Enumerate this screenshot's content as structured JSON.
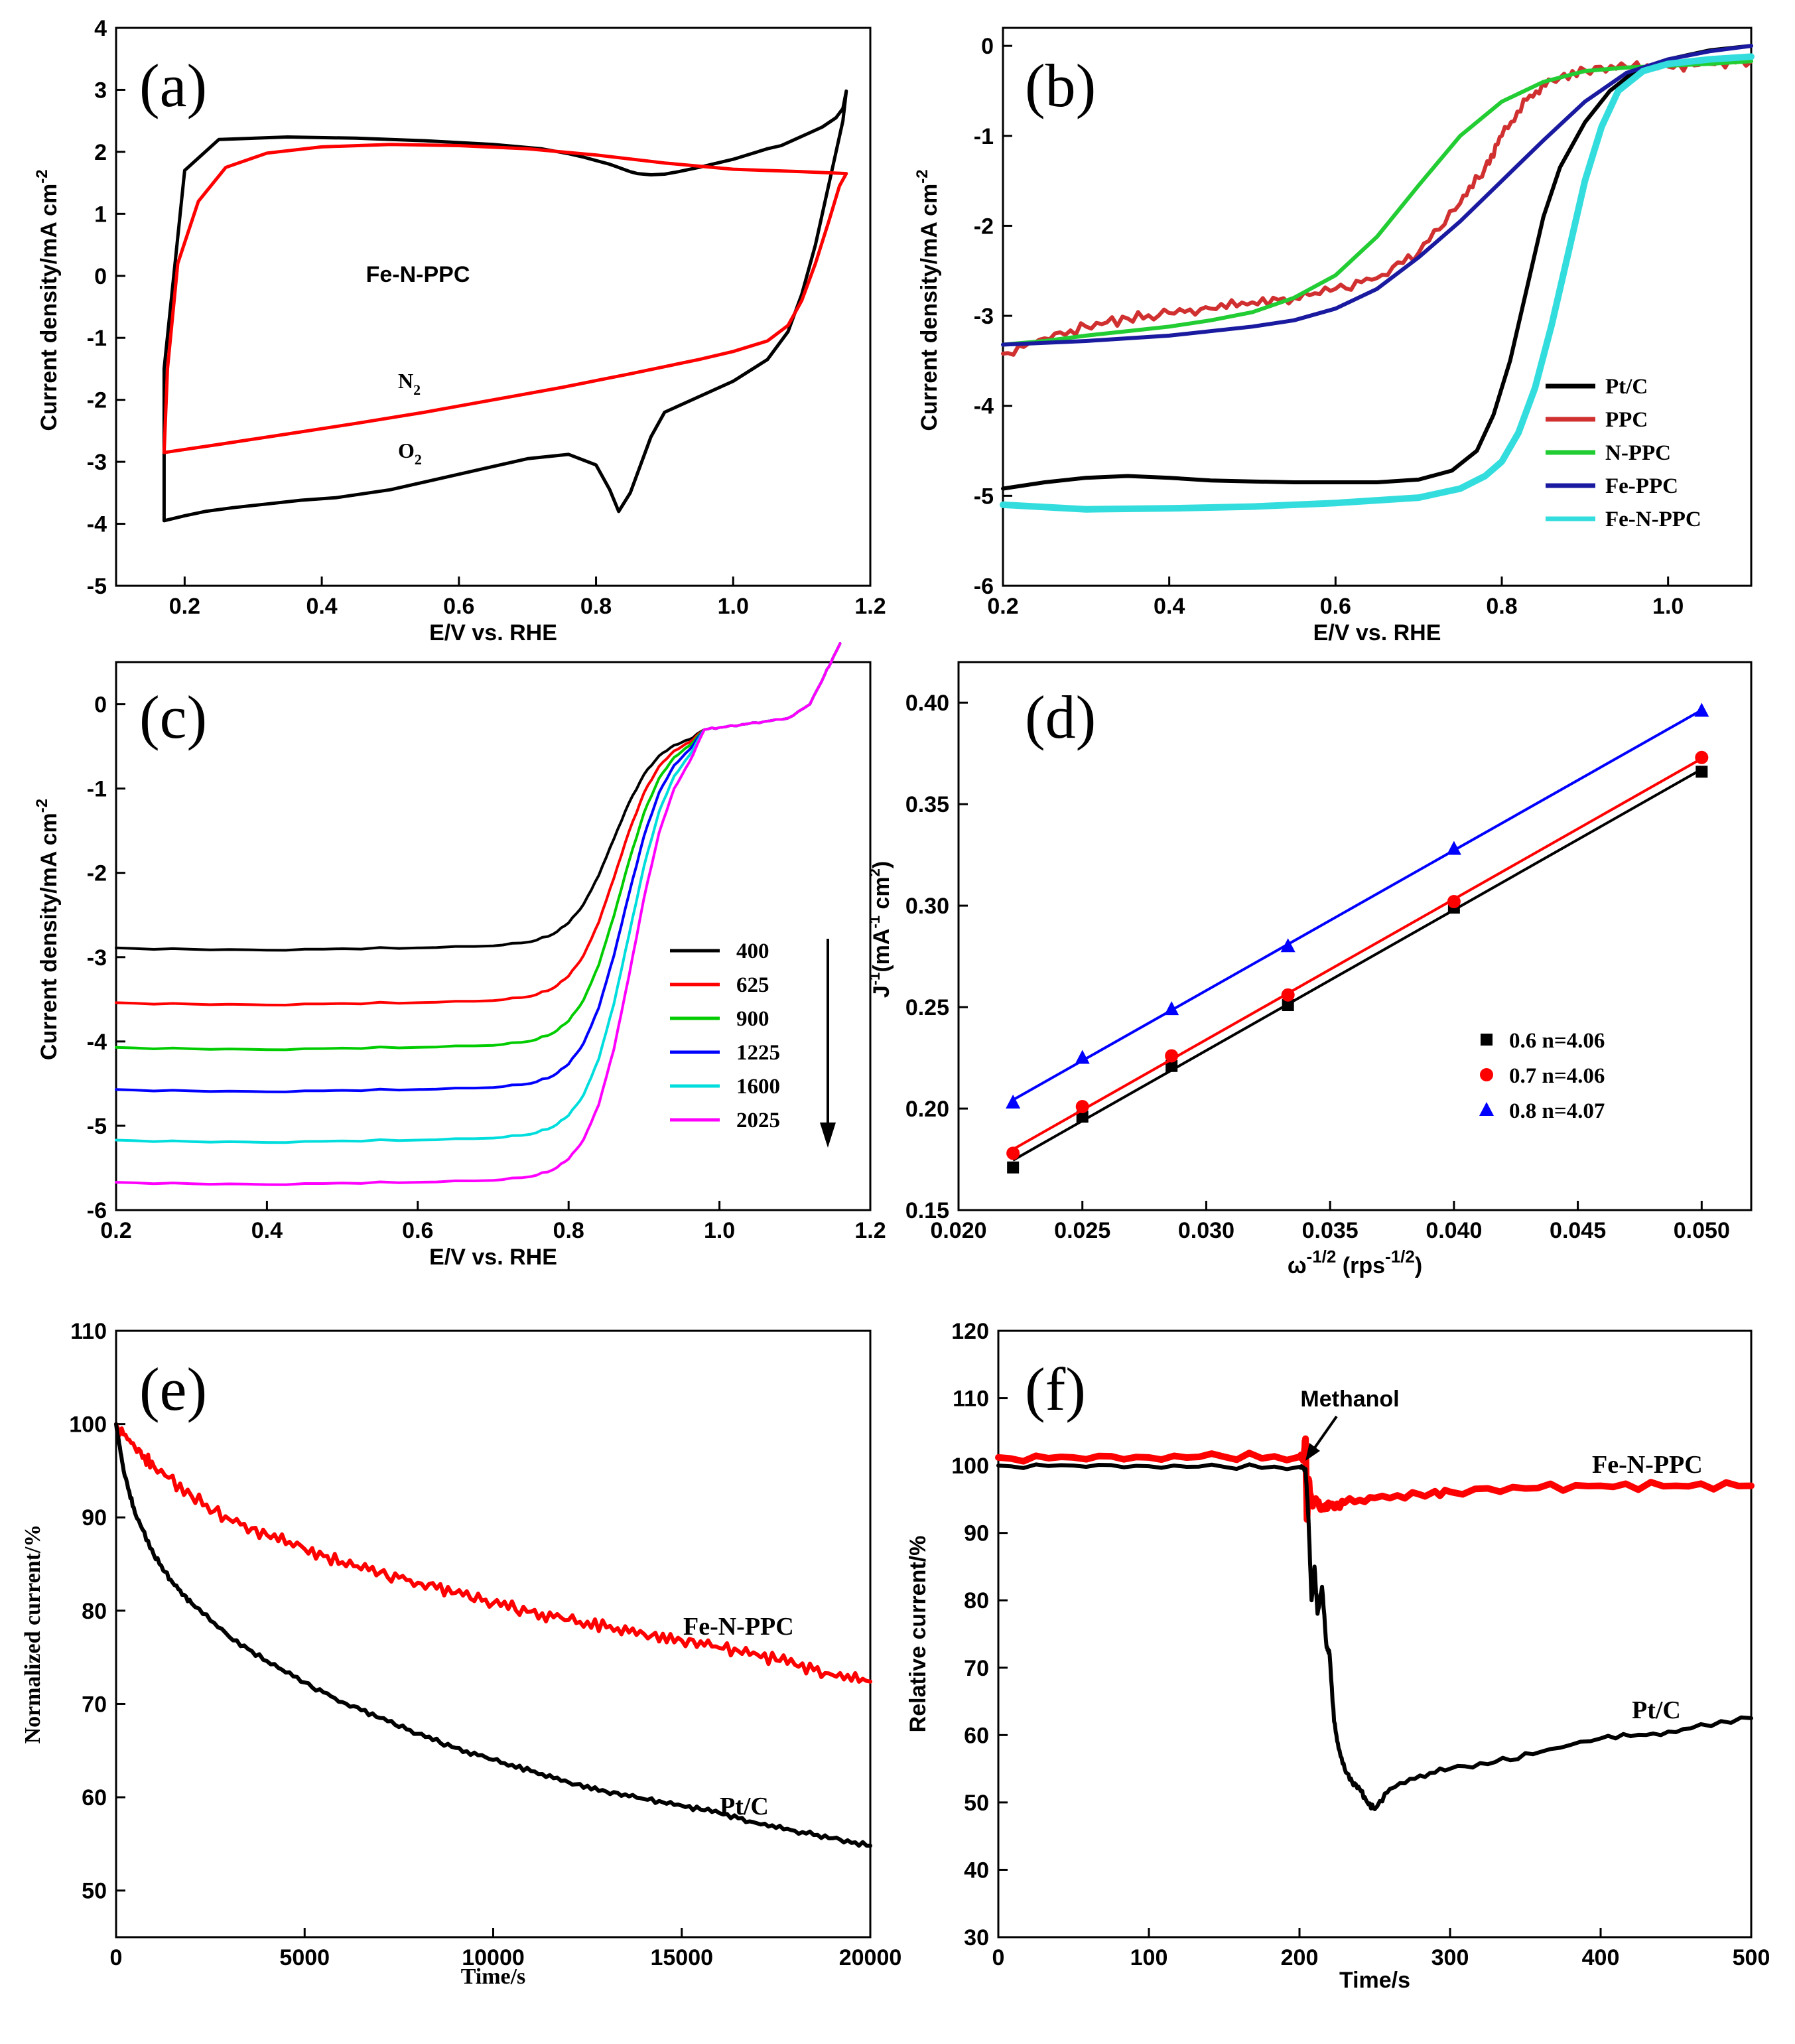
{
  "chart_data": [
    {
      "id": "a",
      "type": "line",
      "panel_label": "(a)",
      "xlabel": "E/V vs. RHE",
      "ylabel": "Current density/mA cm",
      "ylabel_sup": "-2",
      "xlim": [
        0.1,
        1.2
      ],
      "ylim": [
        -5,
        4
      ],
      "xticks": [
        "0.2",
        "0.4",
        "0.6",
        "0.8",
        "1.0",
        "1.2"
      ],
      "yticks": [
        "-5",
        "-4",
        "-3",
        "-2",
        "-1",
        "0",
        "1",
        "2",
        "3",
        "4"
      ],
      "annotations": [
        {
          "text": "Fe-N-PPC"
        },
        {
          "text": "N",
          "sub": "2"
        },
        {
          "text": "O",
          "sub": "2"
        }
      ],
      "series": [
        {
          "name": "O2",
          "color": "#000000",
          "x": [
            0.17,
            0.2,
            0.23,
            0.27,
            0.32,
            0.37,
            0.42,
            0.5,
            0.6,
            0.7,
            0.76,
            0.8,
            0.82,
            0.833,
            0.85,
            0.88,
            0.9,
            0.95,
            1.0,
            1.05,
            1.08,
            1.1,
            1.12,
            1.14,
            1.16,
            1.165,
            1.16,
            1.15,
            1.13,
            1.11,
            1.09,
            1.07,
            1.05,
            1.0,
            0.95,
            0.92,
            0.9,
            0.88,
            0.86,
            0.85,
            0.84,
            0.83,
            0.82,
            0.8,
            0.78,
            0.76,
            0.72,
            0.65,
            0.55,
            0.45,
            0.35,
            0.25,
            0.2,
            0.17,
            0.17
          ],
          "y": [
            -3.95,
            -3.87,
            -3.8,
            -3.74,
            -3.68,
            -3.62,
            -3.58,
            -3.45,
            -3.2,
            -2.95,
            -2.88,
            -3.05,
            -3.45,
            -3.8,
            -3.5,
            -2.6,
            -2.2,
            -1.95,
            -1.7,
            -1.35,
            -0.9,
            -0.3,
            0.5,
            1.5,
            2.5,
            2.98,
            2.7,
            2.55,
            2.4,
            2.3,
            2.2,
            2.1,
            2.05,
            1.88,
            1.75,
            1.68,
            1.64,
            1.63,
            1.65,
            1.68,
            1.72,
            1.76,
            1.8,
            1.86,
            1.92,
            1.97,
            2.05,
            2.12,
            2.18,
            2.22,
            2.24,
            2.2,
            1.7,
            -1.5,
            -3.95
          ]
        },
        {
          "name": "N2",
          "color": "#ff0000",
          "x": [
            0.17,
            0.25,
            0.35,
            0.45,
            0.55,
            0.65,
            0.75,
            0.85,
            0.95,
            1.0,
            1.05,
            1.08,
            1.1,
            1.12,
            1.14,
            1.155,
            1.165,
            1.165,
            1.1,
            1.0,
            0.9,
            0.8,
            0.7,
            0.6,
            0.5,
            0.4,
            0.32,
            0.26,
            0.22,
            0.19,
            0.175,
            0.17
          ],
          "y": [
            -2.85,
            -2.72,
            -2.55,
            -2.38,
            -2.2,
            -2.0,
            -1.8,
            -1.58,
            -1.35,
            -1.22,
            -1.05,
            -0.8,
            -0.4,
            0.2,
            0.9,
            1.45,
            1.65,
            1.65,
            1.68,
            1.72,
            1.82,
            1.95,
            2.05,
            2.1,
            2.12,
            2.08,
            1.98,
            1.75,
            1.2,
            0.2,
            -1.5,
            -2.85
          ]
        }
      ]
    },
    {
      "id": "b",
      "type": "line",
      "panel_label": "(b)",
      "xlabel": "E/V vs. RHE",
      "ylabel": "Current density/mA cm",
      "ylabel_sup": "-2",
      "xlim": [
        0.2,
        1.1
      ],
      "ylim": [
        -6,
        0.2
      ],
      "xticks": [
        "0.2",
        "0.4",
        "0.6",
        "0.8",
        "1.0"
      ],
      "yticks": [
        "-6",
        "-5",
        "-4",
        "-3",
        "-2",
        "-1",
        "0"
      ],
      "legend": "bottom-right",
      "series": [
        {
          "name": "Pt/C",
          "color": "#000000",
          "x": [
            0.2,
            0.25,
            0.3,
            0.35,
            0.4,
            0.45,
            0.5,
            0.55,
            0.6,
            0.65,
            0.7,
            0.74,
            0.77,
            0.79,
            0.81,
            0.83,
            0.85,
            0.87,
            0.9,
            0.93,
            0.96,
            1.0,
            1.05,
            1.1
          ],
          "y": [
            -4.92,
            -4.85,
            -4.8,
            -4.78,
            -4.8,
            -4.83,
            -4.84,
            -4.85,
            -4.85,
            -4.85,
            -4.82,
            -4.72,
            -4.5,
            -4.1,
            -3.5,
            -2.7,
            -1.9,
            -1.35,
            -0.85,
            -0.5,
            -0.28,
            -0.15,
            -0.05,
            0.0
          ]
        },
        {
          "name": "PPC",
          "color": "#d03030",
          "x": [
            0.2,
            0.25,
            0.3,
            0.35,
            0.4,
            0.45,
            0.5,
            0.55,
            0.6,
            0.65,
            0.7,
            0.75,
            0.78,
            0.8,
            0.83,
            0.86,
            0.9,
            0.95,
            1.0,
            1.05,
            1.1
          ],
          "y": [
            -3.42,
            -3.25,
            -3.12,
            -3.03,
            -2.97,
            -2.92,
            -2.85,
            -2.8,
            -2.7,
            -2.58,
            -2.3,
            -1.75,
            -1.35,
            -1.0,
            -0.6,
            -0.38,
            -0.27,
            -0.24,
            -0.23,
            -0.2,
            -0.17
          ]
        },
        {
          "name": "N-PPC",
          "color": "#22cc33",
          "x": [
            0.2,
            0.25,
            0.3,
            0.35,
            0.4,
            0.45,
            0.5,
            0.55,
            0.6,
            0.65,
            0.7,
            0.75,
            0.8,
            0.85,
            0.9,
            0.95,
            1.0,
            1.05,
            1.1
          ],
          "y": [
            -3.32,
            -3.28,
            -3.22,
            -3.17,
            -3.12,
            -3.05,
            -2.96,
            -2.8,
            -2.55,
            -2.12,
            -1.55,
            -1.0,
            -0.62,
            -0.4,
            -0.28,
            -0.24,
            -0.22,
            -0.2,
            -0.17
          ]
        },
        {
          "name": "Fe-PPC",
          "color": "#1a1aa0",
          "x": [
            0.2,
            0.3,
            0.4,
            0.5,
            0.55,
            0.6,
            0.65,
            0.7,
            0.75,
            0.8,
            0.85,
            0.9,
            0.95,
            1.0,
            1.05,
            1.1
          ],
          "y": [
            -3.32,
            -3.28,
            -3.22,
            -3.12,
            -3.05,
            -2.92,
            -2.7,
            -2.35,
            -1.95,
            -1.5,
            -1.05,
            -0.62,
            -0.3,
            -0.15,
            -0.06,
            0.0
          ]
        },
        {
          "name": "Fe-N-PPC",
          "color": "#33dddd",
          "x": [
            0.2,
            0.3,
            0.4,
            0.5,
            0.6,
            0.7,
            0.75,
            0.78,
            0.8,
            0.82,
            0.84,
            0.86,
            0.88,
            0.9,
            0.92,
            0.94,
            0.97,
            1.0,
            1.05,
            1.1
          ],
          "y": [
            -5.1,
            -5.15,
            -5.14,
            -5.12,
            -5.08,
            -5.02,
            -4.92,
            -4.78,
            -4.62,
            -4.3,
            -3.8,
            -3.1,
            -2.3,
            -1.5,
            -0.9,
            -0.5,
            -0.28,
            -0.2,
            -0.15,
            -0.12
          ]
        }
      ]
    },
    {
      "id": "c",
      "type": "line",
      "panel_label": "(c)",
      "xlabel": "E/V vs. RHE",
      "ylabel": "Current density/mA cm",
      "ylabel_sup": "-2",
      "xlim": [
        0.2,
        1.2
      ],
      "ylim": [
        -6,
        0.5
      ],
      "xticks": [
        "0.2",
        "0.4",
        "0.6",
        "0.8",
        "1.0",
        "1.2"
      ],
      "yticks": [
        "-6",
        "-5",
        "-4",
        "-3",
        "-2",
        "-1",
        "0"
      ],
      "legend": "right",
      "series": [
        {
          "name": "400",
          "color": "#000000",
          "limiting": -2.87
        },
        {
          "name": "625",
          "color": "#ff0000",
          "limiting": -3.52
        },
        {
          "name": "900",
          "color": "#00cc00",
          "limiting": -4.05
        },
        {
          "name": "1225",
          "color": "#0000ff",
          "limiting": -4.55
        },
        {
          "name": "1600",
          "color": "#00dddd",
          "limiting": -5.15
        },
        {
          "name": "2025",
          "color": "#ff00ff",
          "limiting": -5.65
        }
      ]
    },
    {
      "id": "d",
      "type": "scatter",
      "panel_label": "(d)",
      "xlabel": "ω",
      "xlabel_sup": "-1/2",
      "xlabel_tail": " (rps",
      "xlabel_tail_sup": "-1/2",
      "xlabel_end": ")",
      "ylabel": "J",
      "ylabel_sup": "-1",
      "ylabel_mid": "(mA",
      "ylabel_mid_sup": "-1",
      "ylabel_tail": " cm",
      "ylabel_tail_sup": "2",
      "ylabel_end": ")",
      "xlim": [
        0.02,
        0.052
      ],
      "ylim": [
        0.15,
        0.42
      ],
      "xticks": [
        "0.020",
        "0.025",
        "0.030",
        "0.035",
        "0.040",
        "0.045",
        "0.050"
      ],
      "yticks": [
        "0.15",
        "0.20",
        "0.25",
        "0.30",
        "0.35",
        "0.40"
      ],
      "x": [
        0.0222,
        0.025,
        0.0286,
        0.0333,
        0.04,
        0.05
      ],
      "series": [
        {
          "name": "0.6  n=4.06",
          "color": "#000000",
          "marker": "square",
          "values": [
            0.171,
            0.196,
            0.221,
            0.251,
            0.299,
            0.366
          ]
        },
        {
          "name": "0.7  n=4.06",
          "color": "#ff0000",
          "marker": "circle",
          "values": [
            0.178,
            0.201,
            0.226,
            0.256,
            0.302,
            0.373
          ]
        },
        {
          "name": "0.8  n=4.07",
          "color": "#0000ff",
          "marker": "triangle",
          "values": [
            0.203,
            0.225,
            0.249,
            0.28,
            0.328,
            0.396
          ]
        }
      ]
    },
    {
      "id": "e",
      "type": "line",
      "panel_label": "(e)",
      "xlabel": "Time/s",
      "ylabel": "Normalized current/%",
      "xlim": [
        0,
        20000
      ],
      "ylim": [
        45,
        110
      ],
      "xticks": [
        "0",
        "5000",
        "10000",
        "15000",
        "20000"
      ],
      "yticks": [
        "50",
        "60",
        "70",
        "80",
        "90",
        "100",
        "110"
      ],
      "annotations": [
        {
          "text": "Fe-N-PPC"
        },
        {
          "text": "Pt/C"
        }
      ],
      "series": [
        {
          "name": "Fe-N-PPC",
          "color": "#ff0000",
          "x": [
            0,
            500,
            1000,
            2000,
            3000,
            4000,
            5000,
            6000,
            7000,
            8000,
            9000,
            10000,
            11000,
            12000,
            13000,
            14000,
            15000,
            16000,
            17000,
            18000,
            19000,
            20000
          ],
          "y": [
            100,
            97.5,
            95.5,
            92.3,
            89.8,
            88.1,
            86.6,
            85.2,
            84.1,
            83.0,
            81.9,
            80.8,
            79.9,
            79.0,
            78.2,
            77.5,
            76.8,
            76.0,
            75.3,
            74.2,
            73.1,
            72.4
          ]
        },
        {
          "name": "Pt/C",
          "color": "#000000",
          "x": [
            0,
            200,
            500,
            1000,
            1500,
            2000,
            3000,
            4000,
            5000,
            6000,
            7000,
            8000,
            9000,
            10000,
            11000,
            12000,
            13000,
            14000,
            15000,
            16000,
            17000,
            18000,
            19000,
            20000
          ],
          "y": [
            100,
            95,
            90.5,
            86,
            83,
            80.8,
            77.2,
            74.6,
            72.3,
            70.2,
            68.5,
            66.8,
            65.3,
            64.0,
            62.8,
            61.6,
            60.6,
            59.8,
            59.1,
            58.3,
            57.2,
            56.4,
            55.6,
            54.8
          ]
        }
      ]
    },
    {
      "id": "f",
      "type": "line",
      "panel_label": "(f)",
      "xlabel": "Time/s",
      "ylabel": "Relative current/%",
      "xlim": [
        0,
        500
      ],
      "ylim": [
        30,
        120
      ],
      "xticks": [
        "0",
        "100",
        "200",
        "300",
        "400",
        "500"
      ],
      "yticks": [
        "30",
        "40",
        "50",
        "60",
        "70",
        "80",
        "90",
        "100",
        "110",
        "120"
      ],
      "annotations": [
        {
          "text": "Methanol"
        },
        {
          "text": "Fe-N-PPC"
        },
        {
          "text": "Pt/C"
        }
      ],
      "series": [
        {
          "name": "Fe-N-PPC",
          "color": "#ff0000",
          "x": [
            0,
            50,
            100,
            150,
            200,
            203,
            204,
            205,
            206,
            208,
            210,
            215,
            220,
            230,
            250,
            280,
            300,
            350,
            400,
            450,
            500
          ],
          "y": [
            101.2,
            101.2,
            101.2,
            101.3,
            101.3,
            101.2,
            104,
            92,
            98,
            94,
            95,
            93.5,
            94,
            94.5,
            95.2,
            95.7,
            96.1,
            96.6,
            97,
            97,
            97
          ]
        },
        {
          "name": "Pt/C",
          "color": "#000000",
          "x": [
            0,
            50,
            100,
            150,
            200,
            204,
            206,
            208,
            210,
            212,
            215,
            218,
            220,
            223,
            226,
            230,
            235,
            240,
            245,
            250,
            260,
            280,
            300,
            330,
            360,
            400,
            430,
            460,
            500
          ],
          "y": [
            100,
            100,
            99.9,
            99.8,
            99.8,
            99.5,
            92,
            80,
            85,
            78,
            82,
            73,
            72,
            62,
            58,
            55,
            53,
            52,
            50,
            49,
            52,
            54,
            55,
            56,
            57.5,
            59.5,
            60,
            61,
            62.5
          ]
        }
      ]
    }
  ]
}
